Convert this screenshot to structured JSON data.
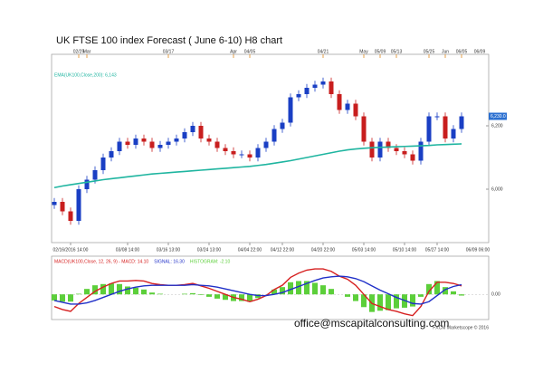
{
  "chart_data": [
    {
      "type": "candlestick",
      "title": "UK FTSE 100 index Forecast ( June 6-10) H8 chart",
      "categories": [
        null,
        null,
        "02/16/2016 14:00",
        null,
        null,
        null,
        null,
        null,
        null,
        "03/08 14:00",
        null,
        null,
        null,
        null,
        "03/16 13:00",
        null,
        null,
        null,
        null,
        "03/24 13:00",
        null,
        null,
        null,
        null,
        "04/04 22:00",
        null,
        null,
        null,
        "04/12 22:00",
        null,
        null,
        null,
        null,
        "04/20 22:00",
        null,
        null,
        null,
        null,
        "05/03 14:00",
        null,
        null,
        null,
        null,
        "05/10 14:00",
        null,
        null,
        null,
        "05/27 14:00",
        null,
        null,
        null
      ],
      "x_end_label": "06/09 06:00",
      "top_labels": [
        null,
        null,
        null,
        "02/25",
        "Mar",
        null,
        null,
        null,
        null,
        null,
        null,
        null,
        null,
        null,
        "03/17",
        null,
        null,
        null,
        null,
        null,
        null,
        null,
        "Apr",
        null,
        "04/05",
        null,
        null,
        null,
        null,
        null,
        null,
        null,
        null,
        "04/21",
        null,
        null,
        null,
        null,
        "May",
        null,
        "05/09",
        null,
        "05/13",
        null,
        null,
        null,
        "05/25",
        null,
        "Jun",
        null,
        "06/05"
      ],
      "top_end_label": "06/09",
      "open": [
        5950,
        5960,
        5930,
        5900,
        6000,
        6030,
        6060,
        6100,
        6120,
        6150,
        6140,
        6160,
        6150,
        6130,
        6140,
        6150,
        6160,
        6180,
        6200,
        6160,
        6150,
        6130,
        6120,
        6110,
        6110,
        6100,
        6130,
        6150,
        6190,
        6210,
        6290,
        6300,
        6320,
        6330,
        6340,
        6300,
        6250,
        6270,
        6230,
        6150,
        6100,
        6150,
        6130,
        6120,
        6110,
        6090,
        6150,
        6230,
        6230,
        6160,
        6190
      ],
      "high": [
        5972,
        5972,
        5942,
        6012,
        6042,
        6072,
        6112,
        6132,
        6162,
        6162,
        6172,
        6172,
        6162,
        6152,
        6162,
        6172,
        6192,
        6212,
        6212,
        6172,
        6162,
        6142,
        6132,
        6122,
        6122,
        6142,
        6162,
        6202,
        6222,
        6302,
        6312,
        6332,
        6342,
        6352,
        6352,
        6312,
        6282,
        6282,
        6242,
        6162,
        6162,
        6162,
        6142,
        6132,
        6122,
        6162,
        6242,
        6242,
        6242,
        6202,
        6242
      ],
      "low": [
        5938,
        5918,
        5888,
        5888,
        5988,
        6018,
        6048,
        6088,
        6108,
        6128,
        6128,
        6138,
        6118,
        6118,
        6128,
        6138,
        6148,
        6168,
        6148,
        6138,
        6118,
        6108,
        6098,
        6098,
        6088,
        6088,
        6118,
        6138,
        6178,
        6198,
        6278,
        6288,
        6308,
        6318,
        6288,
        6238,
        6238,
        6218,
        6138,
        6088,
        6088,
        6118,
        6108,
        6098,
        6078,
        6078,
        6138,
        6218,
        6148,
        6148,
        6178
      ],
      "close": [
        5960,
        5930,
        5900,
        6000,
        6030,
        6060,
        6100,
        6120,
        6150,
        6140,
        6160,
        6150,
        6130,
        6140,
        6150,
        6160,
        6180,
        6200,
        6160,
        6150,
        6130,
        6120,
        6110,
        6110,
        6100,
        6130,
        6150,
        6190,
        6210,
        6290,
        6300,
        6320,
        6330,
        6340,
        6300,
        6250,
        6270,
        6230,
        6150,
        6100,
        6150,
        6130,
        6120,
        6110,
        6090,
        6150,
        6230,
        6230,
        6160,
        6190,
        6230
      ],
      "up_color": "#1a3fc4",
      "down_color": "#c81e1e",
      "ema": {
        "name": "EMA(UK100,Close,200): 6,143",
        "color": "#1fb5a0",
        "values": [
          6005,
          6010,
          6014,
          6018,
          6022,
          6026,
          6030,
          6033,
          6036,
          6039,
          6042,
          6045,
          6048,
          6050,
          6052,
          6054,
          6056,
          6058,
          6060,
          6062,
          6064,
          6066,
          6068,
          6070,
          6072,
          6075,
          6078,
          6082,
          6086,
          6090,
          6095,
          6100,
          6105,
          6110,
          6115,
          6120,
          6124,
          6127,
          6129,
          6131,
          6132,
          6133,
          6134,
          6135,
          6136,
          6137,
          6138,
          6140,
          6141,
          6142,
          6143
        ]
      },
      "ylim": [
        5840,
        6420
      ],
      "yticks": [
        {
          "value": 6000,
          "label": "6,000"
        },
        {
          "value": 6200,
          "label": "6,200"
        }
      ],
      "last_price": {
        "value": 6230,
        "label": "6,230.0"
      }
    },
    {
      "type": "macd",
      "series": [
        {
          "name": "MACD(UK100,Close, 12, 26, 9) - MACD: 14.10",
          "color": "#d62020",
          "values": [
            -20,
            -25,
            -28,
            -15,
            -5,
            5,
            12,
            18,
            22,
            22,
            23,
            22,
            18,
            16,
            15,
            15,
            16,
            18,
            14,
            10,
            5,
            0,
            -5,
            -8,
            -12,
            -8,
            -2,
            8,
            15,
            28,
            35,
            40,
            42,
            42,
            38,
            30,
            25,
            15,
            0,
            -15,
            -20,
            -25,
            -28,
            -32,
            -35,
            -20,
            5,
            20,
            20,
            18,
            14
          ]
        },
        {
          "name": "SIGNAL: 16.30",
          "color": "#2030c8",
          "values": [
            -10,
            -13,
            -16,
            -16,
            -14,
            -10,
            -5,
            0,
            5,
            9,
            12,
            14,
            15,
            15,
            15,
            15,
            15,
            16,
            15,
            14,
            12,
            9,
            6,
            3,
            0,
            -2,
            -2,
            0,
            3,
            8,
            13,
            18,
            23,
            27,
            29,
            30,
            29,
            26,
            21,
            14,
            7,
            1,
            -5,
            -10,
            -15,
            -16,
            -12,
            -2,
            8,
            13,
            16
          ]
        },
        {
          "name": "HISTOGRAM: -2.10",
          "color": "#5ccf3a",
          "style": "bar",
          "values": [
            -10,
            -12,
            -12,
            1,
            9,
            15,
            17,
            18,
            17,
            13,
            11,
            8,
            3,
            1,
            0,
            0,
            1,
            2,
            -1,
            -4,
            -7,
            -9,
            -11,
            -11,
            -12,
            -6,
            0,
            8,
            12,
            20,
            22,
            22,
            19,
            15,
            9,
            0,
            -4,
            -11,
            -21,
            -29,
            -27,
            -26,
            -23,
            -22,
            -20,
            -4,
            17,
            22,
            12,
            5,
            -2
          ]
        }
      ],
      "ylim": [
        -40,
        60
      ],
      "yticks": [
        {
          "value": 0,
          "label": "0.00"
        }
      ]
    }
  ],
  "footer": {
    "email": "office@mscapitalconsulting.com",
    "credit": "FXCM Marketscope © 2016"
  }
}
